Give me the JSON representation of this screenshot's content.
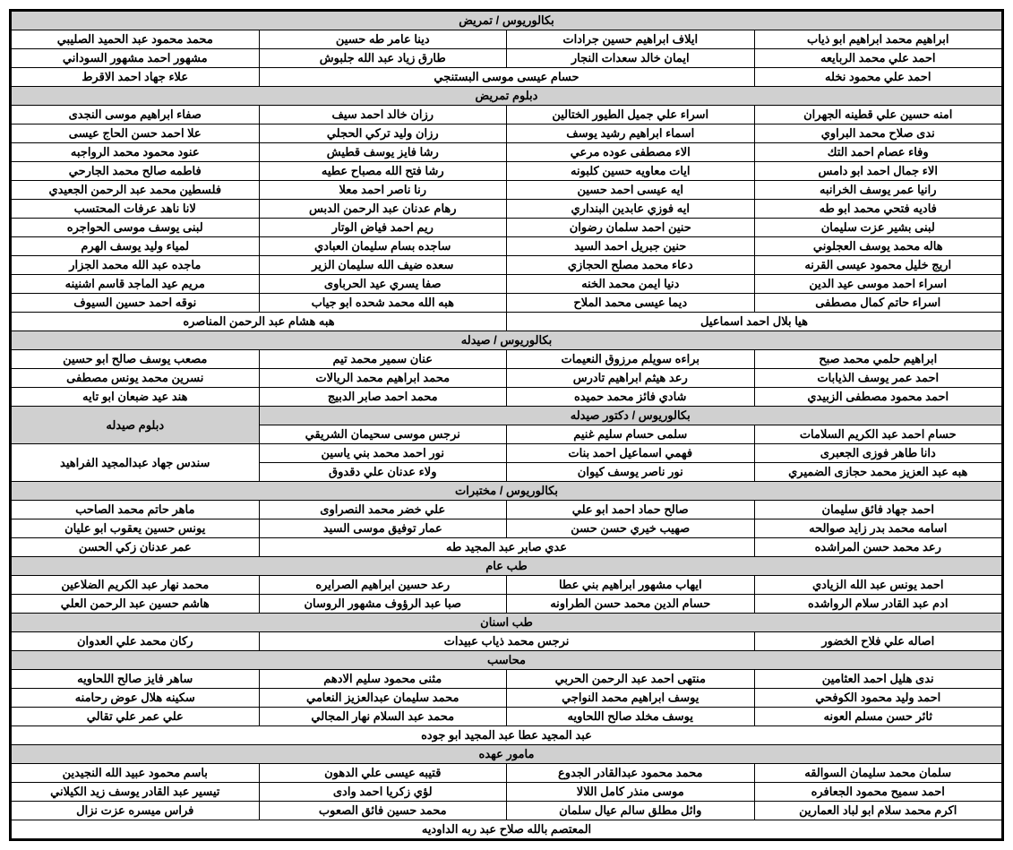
{
  "styles": {
    "header_bg": "#d0d0d0",
    "border_color": "#000000",
    "text_color": "#000000",
    "font_size": 13,
    "font_weight": "bold"
  },
  "sections": [
    {
      "title": "بكالوريوس / تمريض",
      "rows": [
        [
          "ابراهيم محمد ابراهيم ابو ذياب",
          "ايلاف ابراهيم حسين جرادات",
          "دينا عامر طه حسين",
          "محمد محمود عبد الحميد الصليبي"
        ],
        [
          "احمد علي محمد الربايعه",
          "ايمان خالد سعدات النجار",
          "طارق زياد عبد الله جلبوش",
          "مشهور احمد مشهور السوداني"
        ],
        [
          {
            "text": "احمد علي محمود نخله",
            "span": 1
          },
          {
            "text": "حسام عيسى موسى البستنجي",
            "span": 2
          },
          {
            "text": "علاء جهاد احمد الاقرط",
            "span": 1
          }
        ]
      ]
    },
    {
      "title": "دبلوم تمريض",
      "rows": [
        [
          "امنه حسين علي قطينه الجهران",
          "اسراء علي جميل الطيور الختالين",
          "رزان خالد احمد سيف",
          "صفاء ابراهيم موسى النجدى"
        ],
        [
          "ندى صلاح محمد البراوي",
          "اسماء ابراهيم رشيد يوسف",
          "رزان وليد تركي الحجلي",
          "علا احمد حسن الحاج عيسى"
        ],
        [
          "وفاء عصام احمد التك",
          "الاء مصطفى عوده مرعي",
          "رشا فايز يوسف قطيش",
          "عنود محمود محمد الرواجبه"
        ],
        [
          "الاء جمال احمد ابو دامس",
          "ايات معاويه حسين كلبونه",
          "رشا فتح الله مصباح عطيه",
          "فاطمه صالح محمد الجارحي"
        ],
        [
          "رانيا عمر يوسف الخرانبه",
          "ايه عيسى احمد حسين",
          "رنا ناصر احمد معلا",
          "فلسطين محمد عبد الرحمن الجعيدي"
        ],
        [
          "فاديه فتحي محمد ابو طه",
          "ايه فوزي عابدين البنداري",
          "رهام عدنان عبد الرحمن الدبس",
          "لانا ناهد عرفات المحتسب"
        ],
        [
          "لبنى بشير عزت سليمان",
          "حنين احمد سلمان رضوان",
          "ريم احمد فياض الوتار",
          "لبنى يوسف موسى الحواجره"
        ],
        [
          "هاله محمد يوسف العجلوني",
          "حنين جبريل احمد السيد",
          "ساجده بسام سليمان العبادي",
          "لمياء وليد يوسف الهرم"
        ],
        [
          "اريج خليل محمود عيسى القرنه",
          "دعاء محمد مصلح الحجازي",
          "سعده ضيف الله سليمان الزير",
          "ماجده عبد الله محمد الجزار"
        ],
        [
          "اسراء احمد موسى عيد الدين",
          "دنيا ايمن محمد الخنه",
          "صفا يسري عيد الحرباوى",
          "مريم عيد الماجد قاسم اشنينه"
        ],
        [
          "اسراء حاتم كمال مصطفى",
          "ديما عيسى محمد الملاح",
          "هبه الله محمد شحده ابو جياب",
          "نوقه احمد حسين السيوف"
        ],
        [
          {
            "text": "هيا بلال احمد اسماعيل",
            "span": 2
          },
          {
            "text": "هبه هشام عبد الرحمن المناصره",
            "span": 2
          }
        ]
      ]
    },
    {
      "title": "بكالوريوس / صيدله",
      "rows": [
        [
          "ابراهيم حلمي محمد صبح",
          "براءه سويلم مرزوق النعيمات",
          "عنان سمير محمد تيم",
          "مصعب يوسف صالح ابو حسين"
        ],
        [
          "احمد عمر يوسف الذيابات",
          "رعد هيثم ابراهيم تادرس",
          "محمد ابراهيم محمد الريالات",
          "نسرين محمد يونس مصطفى"
        ],
        [
          "احمد محمود مصطفى الزبيدي",
          "شادي فائز محمد حميده",
          "محمد احمد صابر الدبيج",
          "هند عيد ضبعان ابو تايه"
        ]
      ]
    },
    {
      "title_row": [
        {
          "text": "بكالوريوس / دكتور صيدله",
          "span": 3,
          "header": true
        },
        {
          "text": "دبلوم صيدله",
          "span": 1,
          "header": true,
          "rowspan": 2
        }
      ],
      "rows": [
        [
          {
            "text": "حسام احمد عبد الكريم السلامات",
            "span": 1
          },
          {
            "text": "سلمى حسام سليم غنيم",
            "span": 1
          },
          {
            "text": "نرجس موسى سحيمان الشريقي",
            "span": 1
          }
        ],
        [
          "دانا طاهر فوزى الجعبرى",
          "فهمي اسماعيل احمد بنات",
          "نور احمد محمد بني ياسين",
          {
            "text": "سندس جهاد عبدالمجيد الفراهيد",
            "rowspan": 2
          }
        ],
        [
          "هبه عبد العزيز محمد حجازى الضميري",
          "نور ناصر يوسف كيوان",
          "ولاء عدنان علي دقدوق"
        ]
      ]
    },
    {
      "title": "بكالوريوس / مختبرات",
      "rows": [
        [
          "احمد جهاد فائق سليمان",
          "صالح حماد احمد ابو علي",
          "علي خضر محمد النصراوى",
          "ماهر حاتم محمد الصاحب"
        ],
        [
          "اسامه محمد بدر زايد صوالحه",
          "صهيب خيري حسن حسن",
          "عمار توفيق موسى السيد",
          "يونس حسين يعقوب ابو عليان"
        ],
        [
          {
            "text": "رعد محمد حسن المراشده",
            "span": 1
          },
          {
            "text": "عدي صابر عبد المجيد طه",
            "span": 2
          },
          {
            "text": "عمر عدنان زكي الحسن",
            "span": 1
          }
        ]
      ]
    },
    {
      "title": "طب عام",
      "rows": [
        [
          "احمد يونس عبد الله الزيادي",
          "ايهاب مشهور ابراهيم بني عطا",
          "رعد حسين ابراهيم الصرايره",
          "محمد نهار عبد الكريم الضلاعين"
        ],
        [
          "ادم عبد القادر سلام الرواشده",
          "حسام الدين محمد حسن الطراونه",
          "صبا عبد الرؤوف مشهور الروسان",
          "هاشم حسين عبد الرحمن العلي"
        ]
      ]
    },
    {
      "title": "طب اسنان",
      "rows": [
        [
          {
            "text": "اصاله علي فلاح الخضور",
            "span": 1
          },
          {
            "text": "نرجس محمد ذياب عبيدات",
            "span": 2
          },
          {
            "text": "ركان محمد علي العدوان",
            "span": 1
          }
        ]
      ]
    },
    {
      "title": "محاسب",
      "rows": [
        [
          "ندى هليل احمد العثامين",
          "منتهى احمد عبد الرحمن الحربي",
          "مثنى محمود سليم الادهم",
          "ساهر فايز صالح اللحاويه"
        ],
        [
          "احمد وليد محمود الكوفحي",
          "يوسف ابراهيم محمد النواجي",
          "محمد سليمان عبدالعزيز النعامي",
          "سكينه هلال عوض رحامنه"
        ],
        [
          "ثائر حسن مسلم العونه",
          "يوسف مخلد صالح اللحاويه",
          "محمد عبد السلام نهار المجالي",
          "علي عمر علي تقالي"
        ],
        [
          {
            "text": "عبد المجيد عطا عبد المجيد ابو جوده",
            "span": 4
          }
        ]
      ]
    },
    {
      "title": "مامور  عهده",
      "rows": [
        [
          "سلمان محمد سليمان السوالقه",
          "محمد محمود عبدالقادر الجدوع",
          "قتيبه عيسى علي الدهون",
          "باسم محمود عبيد الله النجيدين"
        ],
        [
          "احمد سميح محمود الجعافره",
          "موسى منذر كامل اللالا",
          "لؤي زكريا احمد وادى",
          "تيسير عبد القادر يوسف زيد الكيلاني"
        ],
        [
          "اكرم محمد سلام ابو لباد العمارين",
          "وائل مطلق سالم عيال سلمان",
          "محمد حسين فائق الصعوب",
          "فراس ميسره عزت نزال"
        ],
        [
          {
            "text": "المعتصم بالله صلاح عبد ربه الداوديه",
            "span": 4
          }
        ]
      ]
    }
  ]
}
